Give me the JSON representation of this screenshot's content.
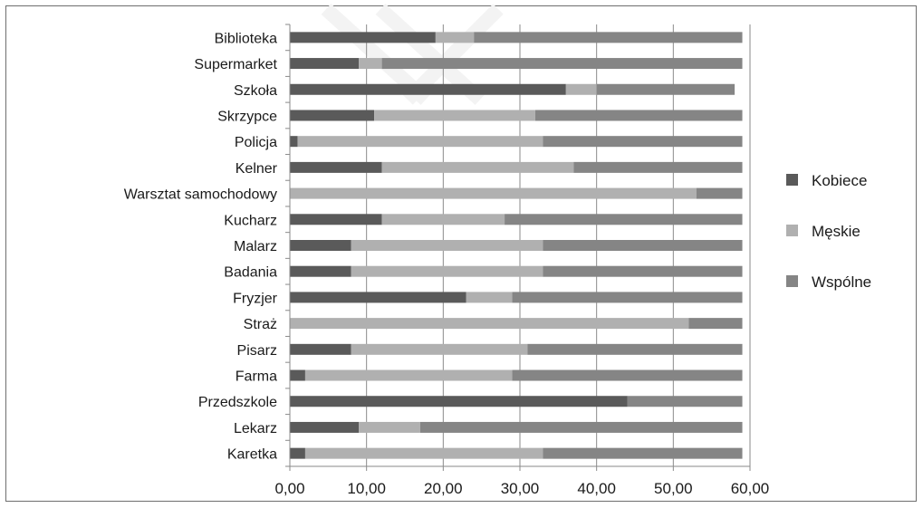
{
  "chart_data": {
    "type": "bar",
    "orientation": "horizontal",
    "stacked": true,
    "categories": [
      "Biblioteka",
      "Supermarket",
      "Szkoła",
      "Skrzypce",
      "Policja",
      "Kelner",
      "Warsztat samochodowy",
      "Kucharz",
      "Malarz",
      "Badania",
      "Fryzjer",
      "Straż",
      "Pisarz",
      "Farma",
      "Przedszkole",
      "Lekarz",
      "Karetka"
    ],
    "series": [
      {
        "name": "Kobiece",
        "color": "#5a5a5a",
        "values": [
          19,
          9,
          36,
          11,
          1,
          12,
          0,
          12,
          8,
          8,
          23,
          0,
          8,
          2,
          44,
          9,
          2
        ]
      },
      {
        "name": "Męskie",
        "color": "#b0b0b0",
        "values": [
          5,
          3,
          4,
          21,
          32,
          25,
          53,
          16,
          25,
          25,
          6,
          52,
          23,
          27,
          0,
          8,
          31
        ]
      },
      {
        "name": "Wspólne",
        "color": "#858585",
        "values": [
          35,
          47,
          18,
          27,
          26,
          22,
          6,
          31,
          26,
          26,
          30,
          7,
          28,
          30,
          15,
          42,
          26
        ]
      }
    ],
    "xlim": [
      0,
      60
    ],
    "xticks": [
      "0,00",
      "10,00",
      "20,00",
      "30,00",
      "40,00",
      "50,00",
      "60,00"
    ],
    "xtick_values": [
      0,
      10,
      20,
      30,
      40,
      50,
      60
    ],
    "grid": "vertical",
    "legend_position": "right"
  }
}
